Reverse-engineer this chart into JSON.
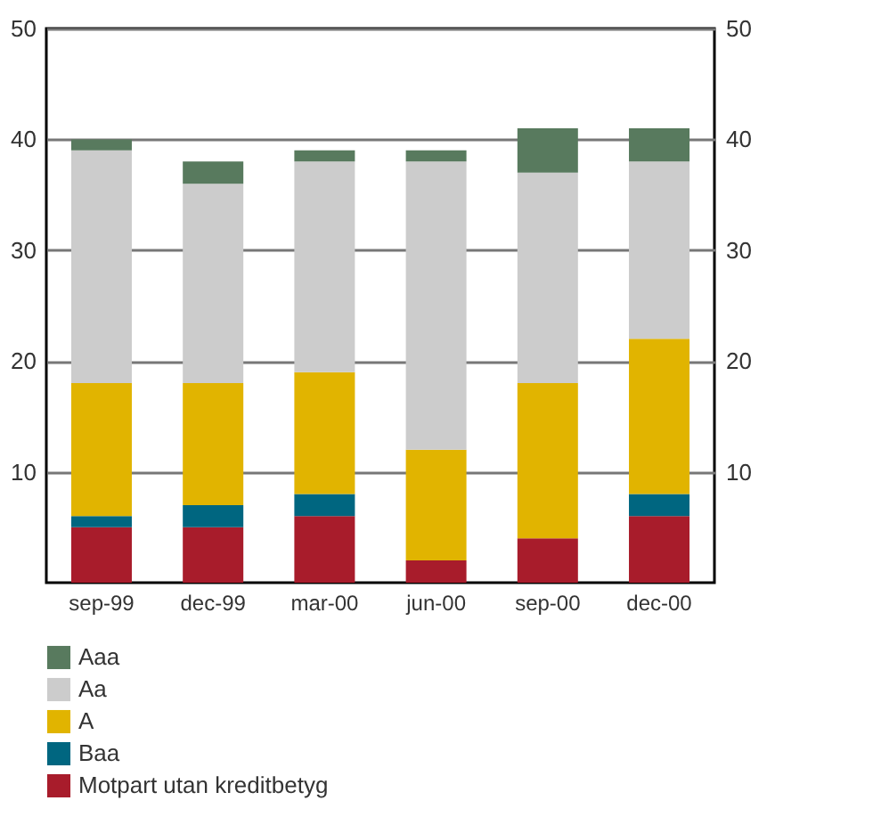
{
  "chart_data": {
    "type": "bar",
    "stacked": true,
    "categories": [
      "sep-99",
      "dec-99",
      "mar-00",
      "jun-00",
      "sep-00",
      "dec-00"
    ],
    "series": [
      {
        "name": "Motpart utan kreditbetyg",
        "color": "#a81c2b",
        "values": [
          5,
          5,
          6,
          2,
          4,
          6
        ]
      },
      {
        "name": "Baa",
        "color": "#006680",
        "values": [
          1,
          2,
          2,
          0,
          0,
          2
        ]
      },
      {
        "name": "A",
        "color": "#e1b400",
        "values": [
          12,
          11,
          11,
          10,
          14,
          14
        ]
      },
      {
        "name": "Aa",
        "color": "#cccccc",
        "values": [
          21,
          18,
          19,
          26,
          19,
          16
        ]
      },
      {
        "name": "Aaa",
        "color": "#587a5e",
        "values": [
          1,
          2,
          1,
          1,
          4,
          3
        ]
      }
    ],
    "ylim": [
      0,
      50
    ],
    "yticks": [
      10,
      20,
      30,
      40,
      50
    ],
    "y2lim": [
      0,
      50
    ],
    "y2ticks": [
      10,
      20,
      30,
      40,
      50
    ],
    "grid": "y",
    "legend": "bottom left"
  }
}
